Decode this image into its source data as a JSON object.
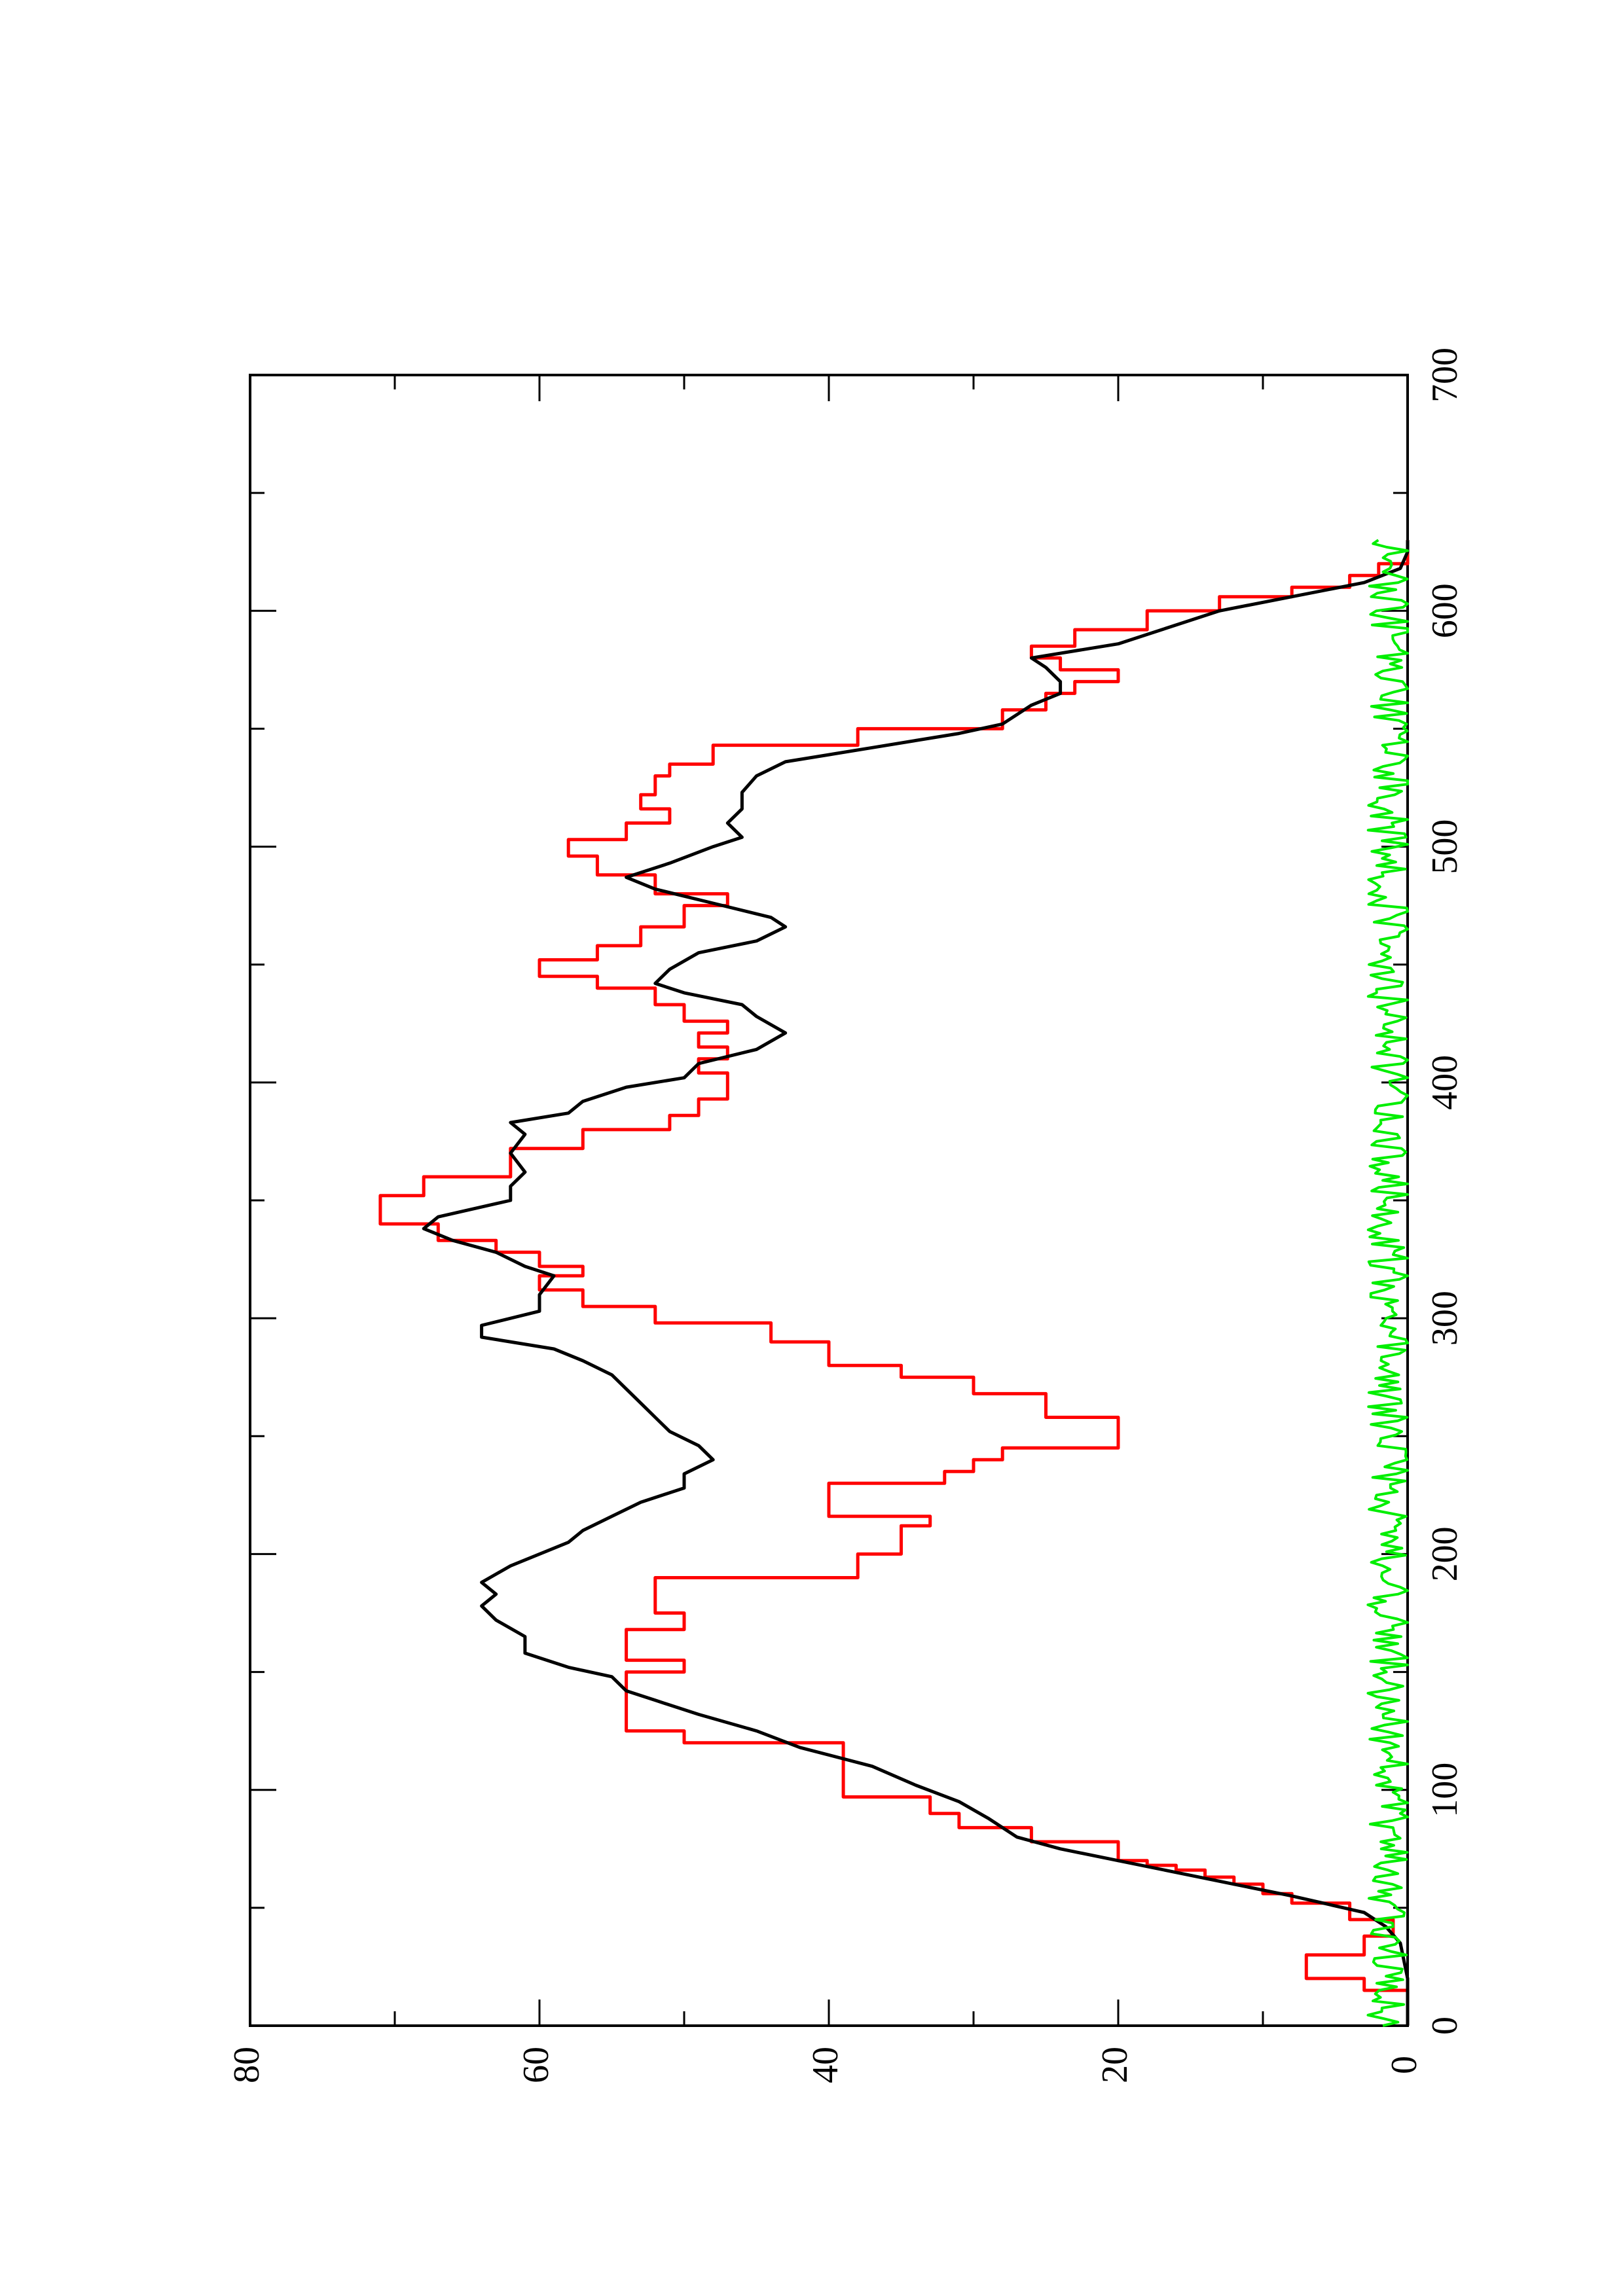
{
  "chart_data": {
    "type": "line",
    "orientation": "rotated-90-ccw",
    "title": "",
    "xlabel": "",
    "ylabel": "",
    "xlim": [
      0,
      700
    ],
    "ylim": [
      0,
      80
    ],
    "x_ticks": [
      "0",
      "100",
      "200",
      "300",
      "400",
      "500",
      "600",
      "700"
    ],
    "y_ticks": [
      "0",
      "20",
      "40",
      "60",
      "80"
    ],
    "grid": false,
    "legend": "none",
    "series": [
      {
        "color": "#ff0000",
        "style": "step",
        "points": [
          [
            0,
            0
          ],
          [
            10,
            0
          ],
          [
            15,
            3
          ],
          [
            20,
            7
          ],
          [
            27,
            7
          ],
          [
            30,
            3
          ],
          [
            38,
            1
          ],
          [
            45,
            4
          ],
          [
            50,
            4
          ],
          [
            52,
            8
          ],
          [
            56,
            10
          ],
          [
            60,
            12
          ],
          [
            63,
            14
          ],
          [
            66,
            16
          ],
          [
            68,
            18
          ],
          [
            70,
            20
          ],
          [
            78,
            26
          ],
          [
            84,
            31
          ],
          [
            90,
            33
          ],
          [
            97,
            39
          ],
          [
            110,
            39
          ],
          [
            120,
            50
          ],
          [
            125,
            54
          ],
          [
            145,
            54
          ],
          [
            150,
            50
          ],
          [
            155,
            54
          ],
          [
            165,
            54
          ],
          [
            168,
            50
          ],
          [
            175,
            52
          ],
          [
            190,
            38
          ],
          [
            200,
            35
          ],
          [
            212,
            33
          ],
          [
            216,
            40
          ],
          [
            230,
            32
          ],
          [
            235,
            30
          ],
          [
            240,
            28
          ],
          [
            245,
            20
          ],
          [
            250,
            20
          ],
          [
            258,
            25
          ],
          [
            268,
            30
          ],
          [
            275,
            35
          ],
          [
            280,
            40
          ],
          [
            290,
            44
          ],
          [
            298,
            52
          ],
          [
            305,
            57
          ],
          [
            312,
            60
          ],
          [
            318,
            57
          ],
          [
            322,
            60
          ],
          [
            328,
            63
          ],
          [
            333,
            67
          ],
          [
            340,
            71
          ],
          [
            345,
            71
          ],
          [
            352,
            68
          ],
          [
            360,
            62
          ],
          [
            372,
            57
          ],
          [
            380,
            51
          ],
          [
            386,
            49
          ],
          [
            393,
            47
          ],
          [
            398,
            47
          ],
          [
            404,
            49
          ],
          [
            410,
            47
          ],
          [
            415,
            49
          ],
          [
            421,
            47
          ],
          [
            426,
            50
          ],
          [
            433,
            52
          ],
          [
            440,
            56
          ],
          [
            445,
            60
          ],
          [
            452,
            56
          ],
          [
            458,
            53
          ],
          [
            466,
            50
          ],
          [
            475,
            47
          ],
          [
            480,
            52
          ],
          [
            488,
            56
          ],
          [
            496,
            58
          ],
          [
            503,
            54
          ],
          [
            510,
            51
          ],
          [
            516,
            53
          ],
          [
            522,
            52
          ],
          [
            530,
            51
          ],
          [
            535,
            48
          ],
          [
            543,
            38
          ],
          [
            550,
            28
          ],
          [
            558,
            25
          ],
          [
            565,
            23
          ],
          [
            570,
            20
          ],
          [
            575,
            24
          ],
          [
            580,
            26
          ],
          [
            585,
            23
          ],
          [
            592,
            18
          ],
          [
            600,
            13
          ],
          [
            606,
            8
          ],
          [
            610,
            4
          ],
          [
            615,
            2
          ],
          [
            620,
            0
          ],
          [
            630,
            0
          ]
        ]
      },
      {
        "color": "#000000",
        "style": "line",
        "points": [
          [
            0,
            0
          ],
          [
            20,
            0
          ],
          [
            35,
            0.5
          ],
          [
            42,
            1.5
          ],
          [
            48,
            3
          ],
          [
            55,
            8
          ],
          [
            60,
            12
          ],
          [
            65,
            16
          ],
          [
            70,
            20
          ],
          [
            75,
            24
          ],
          [
            80,
            27
          ],
          [
            88,
            29
          ],
          [
            95,
            31
          ],
          [
            102,
            34
          ],
          [
            110,
            37
          ],
          [
            118,
            42
          ],
          [
            125,
            45
          ],
          [
            132,
            49
          ],
          [
            138,
            52
          ],
          [
            142,
            54
          ],
          [
            148,
            55
          ],
          [
            152,
            58
          ],
          [
            158,
            61
          ],
          [
            165,
            61
          ],
          [
            172,
            63
          ],
          [
            178,
            64
          ],
          [
            183,
            63
          ],
          [
            188,
            64
          ],
          [
            195,
            62
          ],
          [
            200,
            60
          ],
          [
            205,
            58
          ],
          [
            210,
            57
          ],
          [
            216,
            55
          ],
          [
            222,
            53
          ],
          [
            228,
            50
          ],
          [
            234,
            50
          ],
          [
            240,
            48
          ],
          [
            246,
            49
          ],
          [
            252,
            51
          ],
          [
            258,
            52
          ],
          [
            264,
            53
          ],
          [
            270,
            54
          ],
          [
            276,
            55
          ],
          [
            282,
            57
          ],
          [
            287,
            59
          ],
          [
            292,
            64
          ],
          [
            297,
            64
          ],
          [
            303,
            60
          ],
          [
            310,
            60
          ],
          [
            318,
            59
          ],
          [
            322,
            61
          ],
          [
            328,
            63
          ],
          [
            333,
            66
          ],
          [
            338,
            68
          ],
          [
            343,
            67
          ],
          [
            350,
            62
          ],
          [
            356,
            62
          ],
          [
            362,
            61
          ],
          [
            370,
            62
          ],
          [
            378,
            61
          ],
          [
            383,
            62
          ],
          [
            387,
            58
          ],
          [
            392,
            57
          ],
          [
            398,
            54
          ],
          [
            402,
            50
          ],
          [
            408,
            49
          ],
          [
            414,
            45
          ],
          [
            421,
            43
          ],
          [
            428,
            45
          ],
          [
            433,
            46
          ],
          [
            438,
            50
          ],
          [
            442,
            52
          ],
          [
            448,
            51
          ],
          [
            455,
            49
          ],
          [
            460,
            45
          ],
          [
            466,
            43
          ],
          [
            470,
            44
          ],
          [
            476,
            48
          ],
          [
            482,
            52
          ],
          [
            487,
            54
          ],
          [
            493,
            51
          ],
          [
            500,
            48
          ],
          [
            504,
            46
          ],
          [
            510,
            47
          ],
          [
            516,
            46
          ],
          [
            523,
            46
          ],
          [
            530,
            45
          ],
          [
            536,
            43
          ],
          [
            542,
            37
          ],
          [
            548,
            31
          ],
          [
            552,
            28
          ],
          [
            556,
            27
          ],
          [
            560,
            26
          ],
          [
            565,
            24
          ],
          [
            570,
            24
          ],
          [
            576,
            25
          ],
          [
            580,
            26
          ],
          [
            586,
            20
          ],
          [
            592,
            17
          ],
          [
            600,
            13
          ],
          [
            606,
            8
          ],
          [
            612,
            3
          ],
          [
            618,
            0.5
          ],
          [
            625,
            0
          ],
          [
            630,
            0
          ]
        ]
      },
      {
        "color": "#00ee00",
        "style": "noisy",
        "x_start": 0,
        "x_end": 630,
        "baseline": 0.8,
        "amplitude_max": 3
      }
    ]
  }
}
